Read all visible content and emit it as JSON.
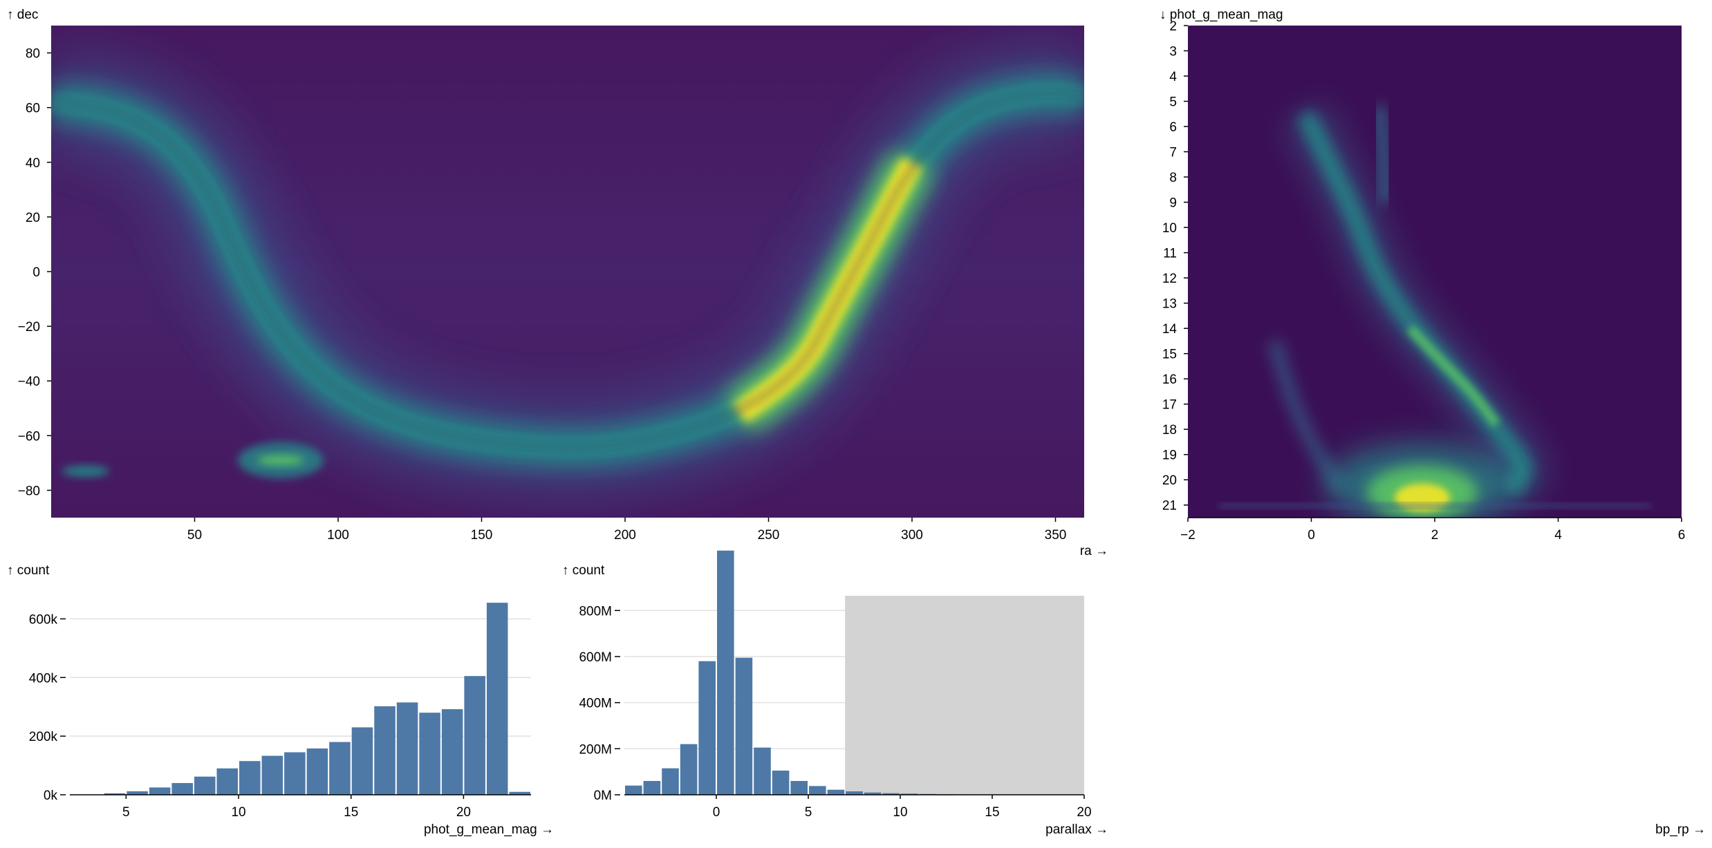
{
  "chart_data": [
    {
      "id": "sky",
      "type": "heatmap",
      "title": "",
      "xlabel": "ra →",
      "ylabel": "↑ dec",
      "x_domain": [
        0,
        360
      ],
      "y_domain": [
        -90,
        90
      ],
      "x_ticks": [
        50,
        100,
        150,
        200,
        250,
        300,
        350
      ],
      "y_ticks": [
        80,
        60,
        40,
        20,
        0,
        -20,
        -40,
        -60,
        -80
      ],
      "y_tick_labels": [
        "80",
        "60",
        "40",
        "20",
        "0",
        "−20",
        "−40",
        "−60",
        "−80"
      ],
      "colorscale": [
        "#440154",
        "#3b528b",
        "#21918c",
        "#5ec962",
        "#fde725"
      ],
      "background": "#472a6a",
      "features": [
        {
          "name": "galactic-plane",
          "path": [
            [
              0,
              62
            ],
            [
              20,
              60
            ],
            [
              40,
              50
            ],
            [
              55,
              30
            ],
            [
              63,
              10
            ],
            [
              72,
              -10
            ],
            [
              85,
              -30
            ],
            [
              105,
              -48
            ],
            [
              135,
              -60
            ],
            [
              175,
              -65
            ],
            [
              205,
              -63
            ],
            [
              240,
              -52
            ],
            [
              262,
              -35
            ],
            [
              272,
              -15
            ],
            [
              285,
              10
            ],
            [
              300,
              40
            ],
            [
              320,
              60
            ],
            [
              345,
              66
            ],
            [
              360,
              64
            ]
          ]
        },
        {
          "name": "lmc",
          "ra": 80,
          "dec": -69
        },
        {
          "name": "smc",
          "ra": 12,
          "dec": -73
        }
      ]
    },
    {
      "id": "cmd",
      "type": "heatmap",
      "title": "",
      "xlabel": "bp_rp →",
      "ylabel": "↓ phot_g_mean_mag",
      "x_domain": [
        -2,
        6
      ],
      "y_domain": [
        2,
        21.5
      ],
      "x_ticks": [
        -2,
        0,
        2,
        4,
        6
      ],
      "x_tick_labels": [
        "−2",
        "0",
        "2",
        "4",
        "6"
      ],
      "y_ticks": [
        2,
        3,
        4,
        5,
        6,
        7,
        8,
        9,
        10,
        11,
        12,
        13,
        14,
        15,
        16,
        17,
        18,
        19,
        20,
        21
      ],
      "background": "#3b0f55"
    },
    {
      "id": "mag-hist",
      "type": "bar",
      "title": "",
      "xlabel": "phot_g_mean_mag →",
      "ylabel": "↑ count",
      "x_domain": [
        2.5,
        23
      ],
      "y_ticks": [
        0,
        200000,
        400000,
        600000
      ],
      "y_tick_labels": [
        "0k",
        "200k",
        "400k",
        "600k"
      ],
      "x_ticks": [
        5,
        10,
        15,
        20
      ],
      "bin_width": 1,
      "bins_start": [
        3,
        4,
        5,
        6,
        7,
        8,
        9,
        10,
        11,
        12,
        13,
        14,
        15,
        16,
        17,
        18,
        19,
        20,
        21,
        22
      ],
      "values": [
        500,
        5000,
        12000,
        25000,
        40000,
        62000,
        90000,
        115000,
        133000,
        145000,
        158000,
        180000,
        230000,
        302000,
        315000,
        280000,
        292000,
        405000,
        655000,
        10000
      ],
      "bar_color": "#4e79a7"
    },
    {
      "id": "parallax-hist",
      "type": "bar",
      "title": "",
      "xlabel": "parallax →",
      "ylabel": "↑ count",
      "x_domain": [
        -5,
        20
      ],
      "y_ticks": [
        0,
        200000000,
        400000000,
        600000000,
        800000000
      ],
      "y_tick_labels": [
        "0M",
        "200M",
        "400M",
        "600M",
        "800M"
      ],
      "x_ticks": [
        0,
        5,
        10,
        15,
        20
      ],
      "bin_width": 1,
      "bins_start": [
        -5,
        -4,
        -3,
        -2,
        -1,
        0,
        1,
        2,
        3,
        4,
        5,
        6,
        7,
        8,
        9,
        10,
        11,
        12,
        13,
        14,
        15,
        16,
        17,
        18,
        19
      ],
      "values": [
        40000000,
        60000000,
        115000000,
        220000000,
        580000000,
        1060000000,
        595000000,
        205000000,
        105000000,
        60000000,
        38000000,
        22000000,
        15000000,
        10000000,
        7000000,
        5000000,
        3500000,
        2500000,
        1800000,
        1300000,
        1000000,
        800000,
        600000,
        500000,
        400000
      ],
      "bar_color": "#4e79a7",
      "brush": {
        "from": 7,
        "to": 20,
        "color": "#d3d3d3"
      }
    }
  ]
}
